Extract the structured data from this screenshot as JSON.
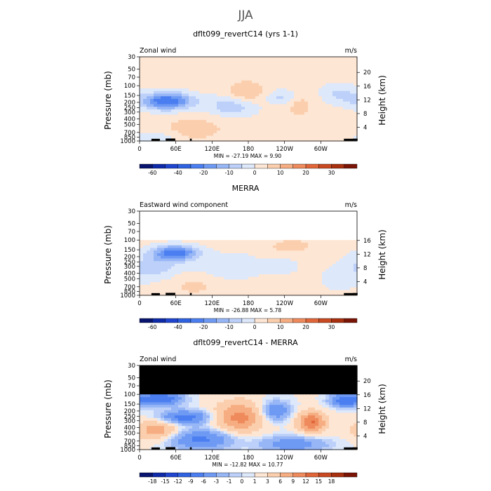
{
  "figure_title": "JJA",
  "chart_data": [
    {
      "type": "heatmap",
      "title": "dflt099_revertC14 (yrs 1-1)",
      "subtitle_left": "Zonal wind",
      "subtitle_right": "m/s",
      "ylabel": "Pressure (mb)",
      "ylabel_right": "Height (km)",
      "y_ticks": [
        "30",
        "50",
        "70",
        "100",
        "150",
        "200",
        "250",
        "300",
        "400",
        "500",
        "700",
        "850",
        "1000"
      ],
      "height_ticks": [
        "20",
        "16",
        "12",
        "8",
        "4"
      ],
      "x_ticks": [
        "0",
        "60E",
        "120E",
        "180",
        "120W",
        "60W"
      ],
      "stats": {
        "min": "-27.19",
        "max": "9.90"
      },
      "stats_text": "MIN = -27.19   MAX =    9.90",
      "colorbar_labels": [
        "-60",
        "-40",
        "-20",
        "-10",
        "0",
        "10",
        "20",
        "30"
      ],
      "levels": [
        -70,
        -60,
        -50,
        -40,
        -30,
        -20,
        -15,
        -10,
        -5,
        0,
        5,
        10,
        15,
        20,
        25,
        30,
        35
      ],
      "ylim": [
        1000,
        30
      ]
    },
    {
      "type": "heatmap",
      "title": "MERRA",
      "subtitle_left": "Eastward wind component",
      "subtitle_right": "m/s",
      "ylabel": "Pressure (mb)",
      "ylabel_right": "Height (km)",
      "y_ticks": [
        "30",
        "50",
        "70",
        "100",
        "150",
        "200",
        "250",
        "300",
        "400",
        "500",
        "700",
        "850",
        "1000"
      ],
      "height_ticks": [
        "16",
        "12",
        "8",
        "4"
      ],
      "x_ticks": [
        "0",
        "60E",
        "120E",
        "180",
        "120W",
        "60W"
      ],
      "stats": {
        "min": "-26.88",
        "max": "5.78"
      },
      "stats_text": "MIN = -26.88   MAX =    5.78",
      "colorbar_labels": [
        "-60",
        "-40",
        "-20",
        "-10",
        "0",
        "10",
        "20",
        "30"
      ],
      "levels": [
        -70,
        -60,
        -50,
        -40,
        -30,
        -20,
        -15,
        -10,
        -5,
        0,
        5,
        10,
        15,
        20,
        25,
        30,
        35
      ],
      "data_top_pressure": 100,
      "ylim": [
        1000,
        30
      ]
    },
    {
      "type": "heatmap",
      "title": "dflt099_revertC14 - MERRA",
      "subtitle_left": "Zonal wind",
      "subtitle_right": "m/s",
      "ylabel": "Pressure (mb)",
      "ylabel_right": "Height (km)",
      "y_ticks": [
        "30",
        "50",
        "70",
        "100",
        "150",
        "200",
        "250",
        "300",
        "400",
        "500",
        "700",
        "850",
        "1000"
      ],
      "height_ticks": [
        "20",
        "16",
        "12",
        "8",
        "4"
      ],
      "x_ticks": [
        "0",
        "60E",
        "120E",
        "180",
        "120W",
        "60W"
      ],
      "stats": {
        "min": "-12.82",
        "max": "10.77"
      },
      "stats_text": "MIN = -12.82   MAX =   10.77",
      "colorbar_labels": [
        "-18",
        "-15",
        "-12",
        "-9",
        "-6",
        "-3",
        "-1",
        "0",
        "1",
        "3",
        "6",
        "9",
        "12",
        "15",
        "18"
      ],
      "levels": [
        -21,
        -18,
        -15,
        -12,
        -9,
        -6,
        -3,
        -1,
        0,
        1,
        3,
        6,
        9,
        12,
        15,
        18,
        21
      ],
      "masked_above_pressure": 100,
      "ylim": [
        1000,
        30
      ]
    }
  ],
  "colors": {
    "blues": [
      "#08146e",
      "#0e2aa8",
      "#1f45cf",
      "#2f62e0",
      "#4b7ef0",
      "#6f9af4",
      "#97b6f6",
      "#bcd0f9",
      "#dde8fb"
    ],
    "reds": [
      "#fde6d4",
      "#fbcfae",
      "#f6ad82",
      "#ee8a5c",
      "#e0663a",
      "#c94a22",
      "#a8300f",
      "#7a1405"
    ],
    "mask": "#000000"
  }
}
